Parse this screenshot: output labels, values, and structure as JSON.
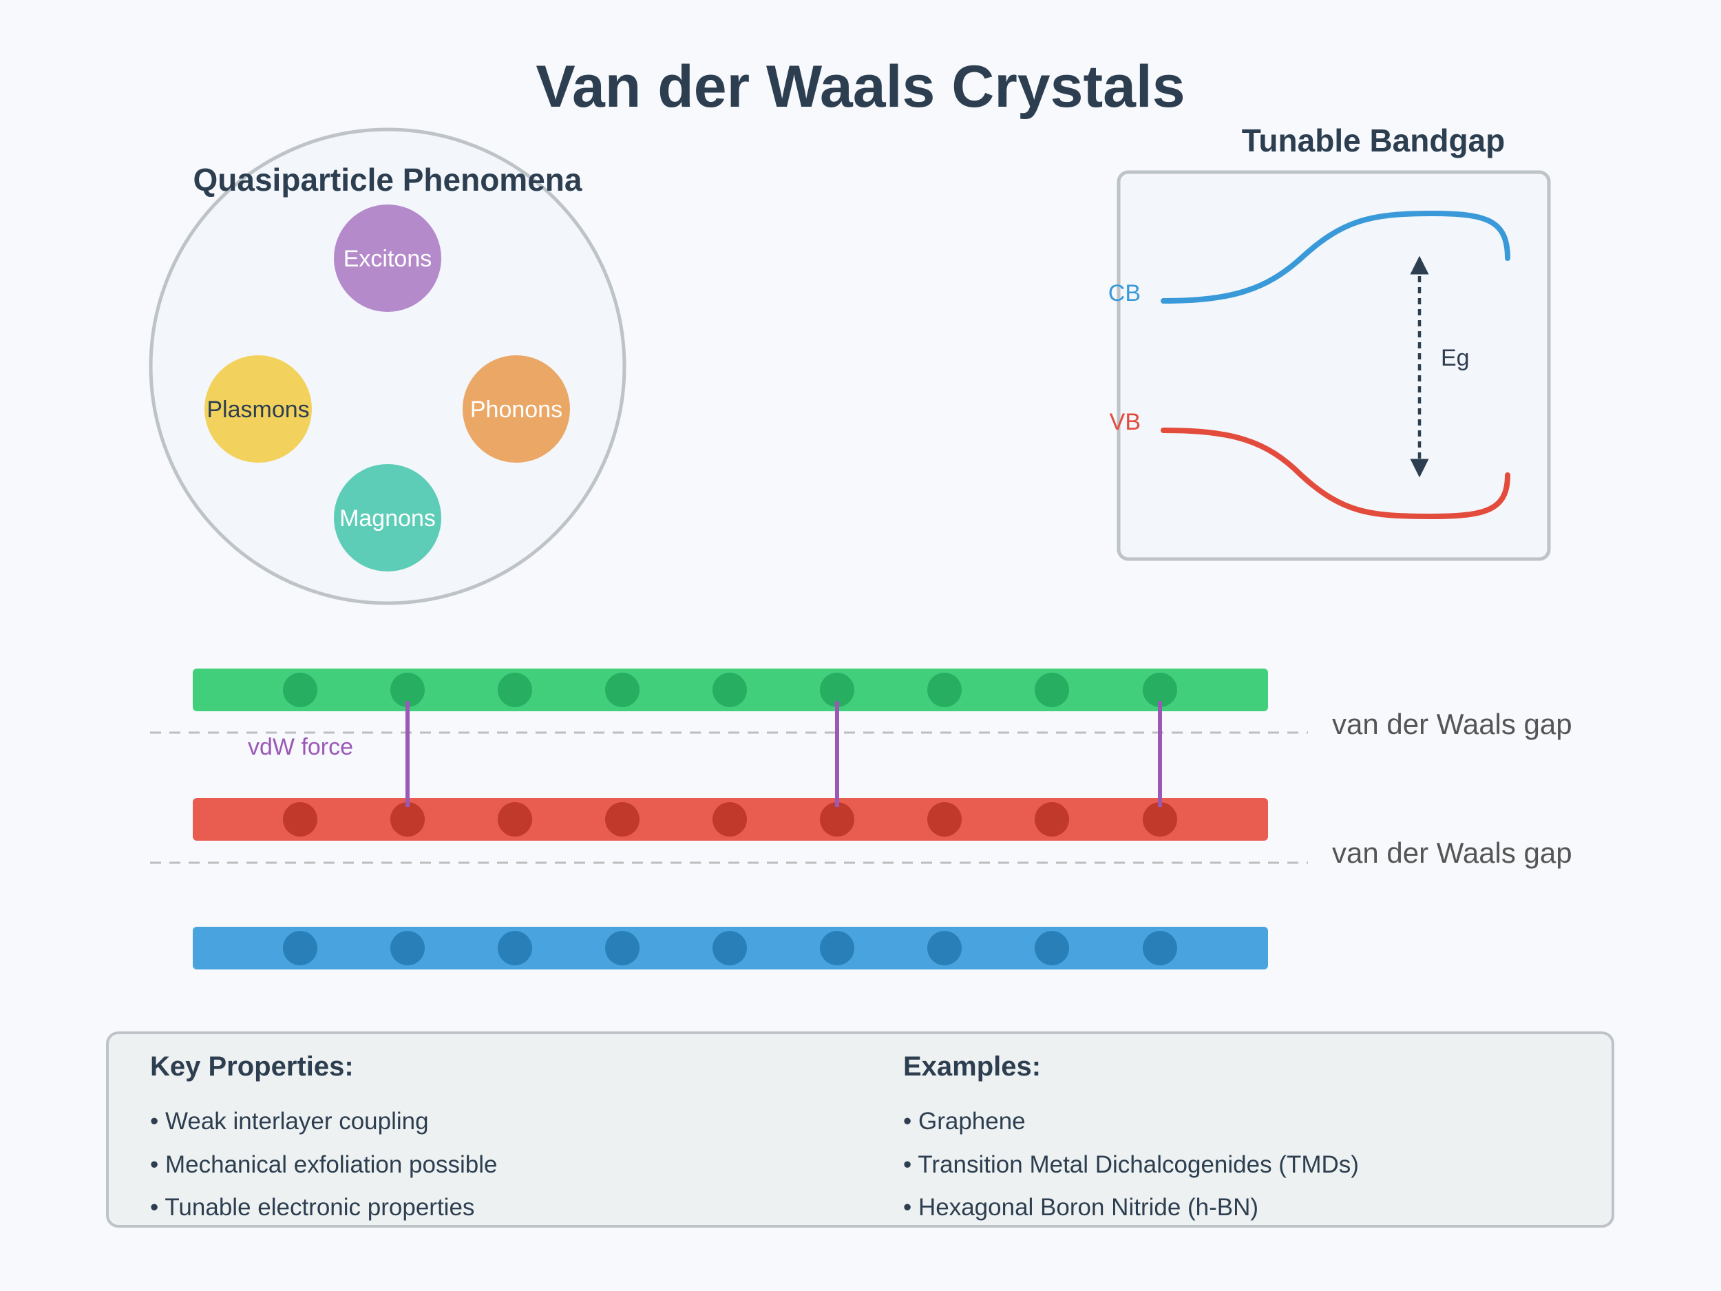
{
  "title": "Van der Waals Crystals",
  "quasiparticles": {
    "heading": "Quasiparticle Phenomena",
    "items": [
      {
        "label": "Excitons",
        "color": "#b48acb",
        "text_color": "#ffffff"
      },
      {
        "label": "Plasmons",
        "color": "#f2d25c",
        "text_color": "#2c3e50"
      },
      {
        "label": "Phonons",
        "color": "#eba765",
        "text_color": "#ffffff"
      },
      {
        "label": "Magnons",
        "color": "#5ecdb7",
        "text_color": "#ffffff"
      }
    ]
  },
  "bandgap": {
    "heading": "Tunable Bandgap",
    "cb_label": "CB",
    "vb_label": "VB",
    "gap_label": "Eg",
    "cb_color": "#3a9ad9",
    "vb_color": "#e34c3d"
  },
  "layers": {
    "items": [
      {
        "color": "#41cf7c",
        "atom_color": "#27ae60"
      },
      {
        "color": "#e85d50",
        "atom_color": "#c0392b"
      },
      {
        "color": "#48a3de",
        "atom_color": "#2980b9"
      }
    ],
    "gap_label": "van der Waals gap",
    "force_label": "vdW force",
    "force_color": "#9b59b6"
  },
  "properties": {
    "heading": "Key Properties:",
    "items": [
      "• Weak interlayer coupling",
      "• Mechanical exfoliation possible",
      "• Tunable electronic properties"
    ]
  },
  "examples": {
    "heading": "Examples:",
    "items": [
      "• Graphene",
      "• Transition Metal Dichalcogenides (TMDs)",
      "• Hexagonal Boron Nitride (h-BN)"
    ]
  }
}
